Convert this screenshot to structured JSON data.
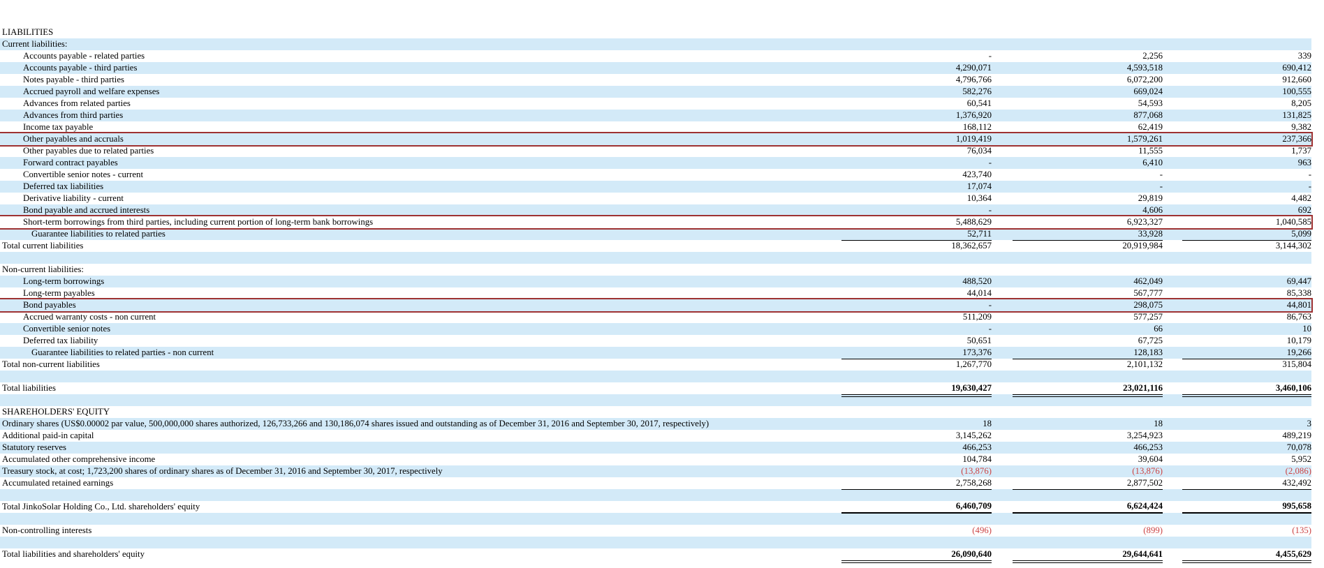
{
  "document": {
    "type": "balance-sheet-excerpt",
    "company": "JinkoSolar Holding Co., Ltd.",
    "colors": {
      "row_stripe_blue": "#d3eaf8",
      "highlight_box_border": "#9e3232",
      "negative_value_red": "#cc4444",
      "rule_line": "#000000"
    }
  },
  "table": {
    "columns": 3,
    "rows": [
      {
        "label": "LIABILITIES",
        "indent": 0,
        "bg": "white",
        "values": [
          "",
          "",
          ""
        ]
      },
      {
        "label": "Current liabilities:",
        "indent": 0,
        "bg": "blue",
        "values": [
          "",
          "",
          ""
        ]
      },
      {
        "label": "Accounts payable - related parties",
        "indent": 1,
        "bg": "white",
        "values": [
          "-",
          "2,256",
          "339"
        ]
      },
      {
        "label": "Accounts payable - third parties",
        "indent": 1,
        "bg": "blue",
        "values": [
          "4,290,071",
          "4,593,518",
          "690,412"
        ]
      },
      {
        "label": "Notes payable - third parties",
        "indent": 1,
        "bg": "white",
        "values": [
          "4,796,766",
          "6,072,200",
          "912,660"
        ]
      },
      {
        "label": "Accrued payroll and welfare expenses",
        "indent": 1,
        "bg": "blue",
        "values": [
          "582,276",
          "669,024",
          "100,555"
        ]
      },
      {
        "label": "Advances from related parties",
        "indent": 1,
        "bg": "white",
        "values": [
          "60,541",
          "54,593",
          "8,205"
        ]
      },
      {
        "label": "Advances from third parties",
        "indent": 1,
        "bg": "blue",
        "values": [
          "1,376,920",
          "877,068",
          "131,825"
        ]
      },
      {
        "label": "Income tax payable",
        "indent": 1,
        "bg": "white",
        "values": [
          "168,112",
          "62,419",
          "9,382"
        ]
      },
      {
        "label": "Other payables and accruals",
        "indent": 1,
        "bg": "blue",
        "highlighted": true,
        "values": [
          "1,019,419",
          "1,579,261",
          "237,366"
        ]
      },
      {
        "label": "Other payables due to related parties",
        "indent": 1,
        "bg": "white",
        "values": [
          "76,034",
          "11,555",
          "1,737"
        ]
      },
      {
        "label": "Forward contract payables",
        "indent": 1,
        "bg": "blue",
        "values": [
          "-",
          "6,410",
          "963"
        ]
      },
      {
        "label": "Convertible senior notes - current",
        "indent": 1,
        "bg": "white",
        "values": [
          "423,740",
          "-",
          "-"
        ]
      },
      {
        "label": "Deferred tax liabilities",
        "indent": 1,
        "bg": "blue",
        "values": [
          "17,074",
          "-",
          "-"
        ]
      },
      {
        "label": "Derivative liability - current",
        "indent": 1,
        "bg": "white",
        "values": [
          "10,364",
          "29,819",
          "4,482"
        ]
      },
      {
        "label": "Bond payable and accrued interests",
        "indent": 1,
        "bg": "blue",
        "values": [
          "-",
          "4,606",
          "692"
        ]
      },
      {
        "label": "Short-term borrowings from third parties, including current portion of long-term bank borrowings",
        "indent": 1,
        "bg": "white",
        "highlighted": true,
        "values": [
          "5,488,629",
          "6,923,327",
          "1,040,585"
        ]
      },
      {
        "label": "Guarantee liabilities to related parties",
        "indent": 2,
        "bg": "blue",
        "rule": "single",
        "values": [
          "52,711",
          "33,928",
          "5,099"
        ]
      },
      {
        "label": "Total current liabilities",
        "indent": 0,
        "bg": "white",
        "values": [
          "18,362,657",
          "20,919,984",
          "3,144,302"
        ]
      },
      {
        "label": "",
        "indent": 0,
        "bg": "blue",
        "values": [
          "",
          "",
          ""
        ]
      },
      {
        "label": "Non-current liabilities:",
        "indent": 0,
        "bg": "white",
        "values": [
          "",
          "",
          ""
        ]
      },
      {
        "label": "Long-term borrowings",
        "indent": 1,
        "bg": "blue",
        "values": [
          "488,520",
          "462,049",
          "69,447"
        ]
      },
      {
        "label": "Long-term payables",
        "indent": 1,
        "bg": "white",
        "values": [
          "44,014",
          "567,777",
          "85,338"
        ]
      },
      {
        "label": "Bond payables",
        "indent": 1,
        "bg": "blue",
        "highlighted": true,
        "values": [
          "-",
          "298,075",
          "44,801"
        ]
      },
      {
        "label": "Accrued warranty costs - non current",
        "indent": 1,
        "bg": "white",
        "values": [
          "511,209",
          "577,257",
          "86,763"
        ]
      },
      {
        "label": "Convertible senior notes",
        "indent": 1,
        "bg": "blue",
        "values": [
          "-",
          "66",
          "10"
        ]
      },
      {
        "label": "Deferred tax liability",
        "indent": 1,
        "bg": "white",
        "values": [
          "50,651",
          "67,725",
          "10,179"
        ]
      },
      {
        "label": "Guarantee liabilities to related parties - non current",
        "indent": 2,
        "bg": "blue",
        "rule": "single",
        "values": [
          "173,376",
          "128,183",
          "19,266"
        ]
      },
      {
        "label": "Total non-current liabilities",
        "indent": 0,
        "bg": "white",
        "values": [
          "1,267,770",
          "2,101,132",
          "315,804"
        ]
      },
      {
        "label": "",
        "indent": 0,
        "bg": "blue",
        "values": [
          "",
          "",
          ""
        ]
      },
      {
        "label": "Total liabilities",
        "indent": 0,
        "bg": "white",
        "bold": true,
        "rule": "double",
        "values": [
          "19,630,427",
          "23,021,116",
          "3,460,106"
        ]
      },
      {
        "label": "",
        "indent": 0,
        "bg": "blue",
        "values": [
          "",
          "",
          ""
        ]
      },
      {
        "label": "SHAREHOLDERS' EQUITY",
        "indent": 0,
        "bg": "white",
        "values": [
          "",
          "",
          ""
        ]
      },
      {
        "label": "Ordinary shares (US$0.00002 par value, 500,000,000 shares authorized, 126,733,266 and 130,186,074 shares issued and outstanding as of December 31, 2016 and September 30, 2017, respectively)",
        "indent": 0,
        "bg": "blue",
        "values": [
          "18",
          "18",
          "3"
        ]
      },
      {
        "label": "Additional paid-in capital",
        "indent": 0,
        "bg": "white",
        "values": [
          "3,145,262",
          "3,254,923",
          "489,219"
        ]
      },
      {
        "label": "Statutory reserves",
        "indent": 0,
        "bg": "blue",
        "values": [
          "466,253",
          "466,253",
          "70,078"
        ]
      },
      {
        "label": "Accumulated other comprehensive income",
        "indent": 0,
        "bg": "white",
        "values": [
          "104,784",
          "39,604",
          "5,952"
        ]
      },
      {
        "label": "Treasury stock, at cost; 1,723,200 shares of ordinary shares as of December 31, 2016 and September 30, 2017, respectively",
        "indent": 0,
        "bg": "blue",
        "values": [
          "(13,876)",
          "(13,876)",
          "(2,086)"
        ]
      },
      {
        "label": "Accumulated retained earnings",
        "indent": 0,
        "bg": "white",
        "rule": "single",
        "values": [
          "2,758,268",
          "2,877,502",
          "432,492"
        ]
      },
      {
        "label": "",
        "indent": 0,
        "bg": "blue",
        "values": [
          "",
          "",
          ""
        ]
      },
      {
        "label": "Total JinkoSolar Holding Co., Ltd. shareholders' equity",
        "indent": 0,
        "bg": "white",
        "bold": true,
        "rule": "thick",
        "values": [
          "6,460,709",
          "6,624,424",
          "995,658"
        ]
      },
      {
        "label": "",
        "indent": 0,
        "bg": "blue",
        "values": [
          "",
          "",
          ""
        ]
      },
      {
        "label": "Non-controlling interests",
        "indent": 0,
        "bg": "white",
        "values": [
          "(496)",
          "(899)",
          "(135)"
        ]
      },
      {
        "label": "",
        "indent": 0,
        "bg": "blue",
        "values": [
          "",
          "",
          ""
        ]
      },
      {
        "label": "Total liabilities and shareholders' equity",
        "indent": 0,
        "bg": "white",
        "bold": true,
        "rule": "double",
        "values": [
          "26,090,640",
          "29,644,641",
          "4,455,629"
        ]
      }
    ]
  }
}
